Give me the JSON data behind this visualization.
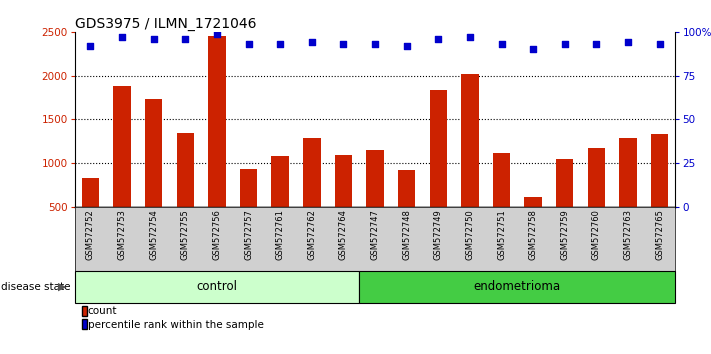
{
  "title": "GDS3975 / ILMN_1721046",
  "categories": [
    "GSM572752",
    "GSM572753",
    "GSM572754",
    "GSM572755",
    "GSM572756",
    "GSM572757",
    "GSM572761",
    "GSM572762",
    "GSM572764",
    "GSM572747",
    "GSM572748",
    "GSM572749",
    "GSM572750",
    "GSM572751",
    "GSM572758",
    "GSM572759",
    "GSM572760",
    "GSM572763",
    "GSM572765"
  ],
  "bar_values": [
    830,
    1880,
    1730,
    1340,
    2450,
    940,
    1080,
    1290,
    1100,
    1150,
    920,
    1840,
    2020,
    1120,
    620,
    1050,
    1180,
    1290,
    1330
  ],
  "percentile_values": [
    92,
    97,
    96,
    96,
    99,
    93,
    93,
    94,
    93,
    93,
    92,
    96,
    97,
    93,
    90,
    93,
    93,
    94,
    93
  ],
  "bar_color": "#cc2200",
  "dot_color": "#0000cc",
  "control_count": 9,
  "endometrioma_count": 10,
  "control_label": "control",
  "endometrioma_label": "endometrioma",
  "disease_state_label": "disease state",
  "ylim_left": [
    500,
    2500
  ],
  "ylim_right": [
    0,
    100
  ],
  "yticks_left": [
    500,
    1000,
    1500,
    2000,
    2500
  ],
  "yticks_right": [
    0,
    25,
    50,
    75,
    100
  ],
  "ytick_labels_right": [
    "0",
    "25",
    "50",
    "75",
    "100%"
  ],
  "legend_count_label": "count",
  "legend_pct_label": "percentile rank within the sample",
  "bg_color": "#d0d0d0",
  "control_bg": "#ccffcc",
  "endo_bg": "#44cc44",
  "title_fontsize": 10,
  "dotted_gridlines": [
    1000,
    1500,
    2000
  ]
}
